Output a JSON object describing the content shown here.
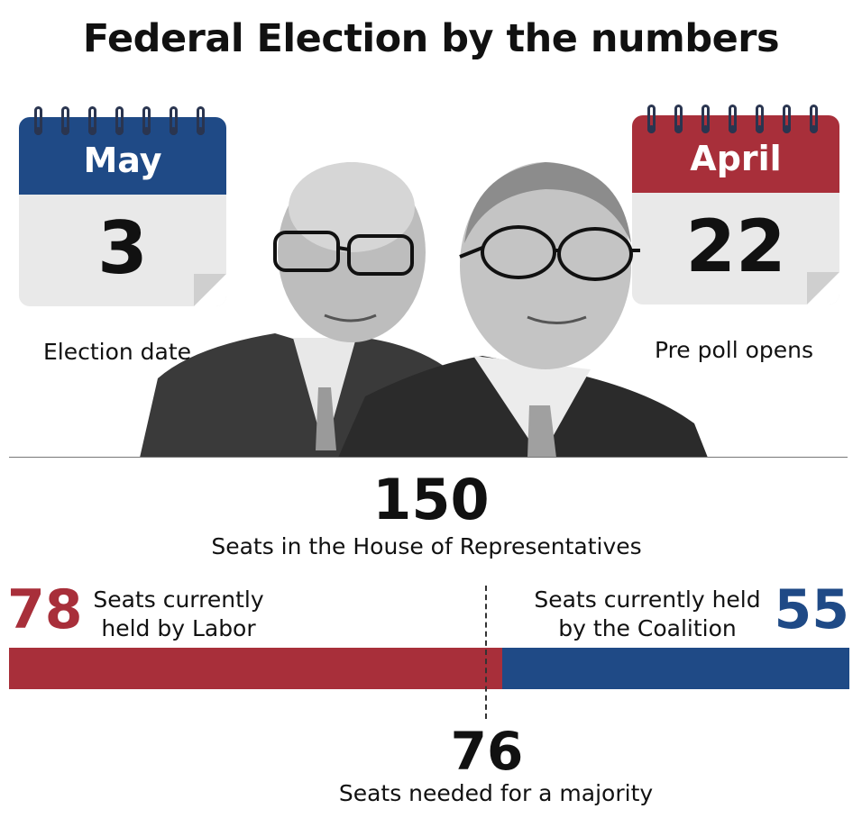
{
  "title": "Federal Election by the numbers",
  "calendars": [
    {
      "month": "May",
      "day": "3",
      "label": "Election date",
      "color": "#1f4a86"
    },
    {
      "month": "April",
      "day": "22",
      "label": "Pre poll opens",
      "color": "#a82f3a"
    }
  ],
  "house": {
    "total": "150",
    "label": "Seats in the House of Representatives"
  },
  "labor": {
    "seats": "78",
    "label_line1": "Seats currently",
    "label_line2": "held by Labor",
    "color": "#a82f3a"
  },
  "coalition": {
    "seats": "55",
    "label_line1": "Seats currently held",
    "label_line2": "by the Coalition",
    "color": "#1f4a86"
  },
  "majority": {
    "seats": "76",
    "label": "Seats needed for a majority"
  },
  "chart_data": {
    "type": "bar",
    "categories": [
      "Labor",
      "Coalition"
    ],
    "values": [
      78,
      55
    ],
    "total": 150,
    "majority_threshold": 76
  }
}
